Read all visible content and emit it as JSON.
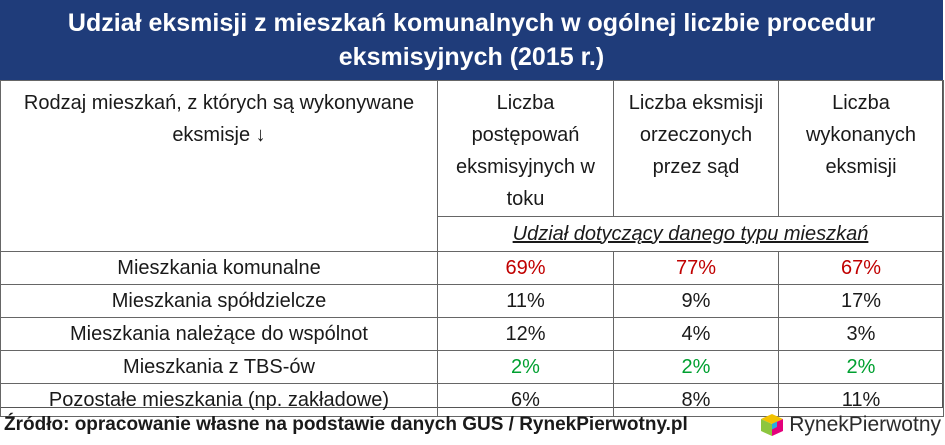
{
  "title": "Udział eksmisji z mieszkań komunalnych w ogólnej liczbie procedur eksmisyjnych (2015 r.)",
  "table": {
    "header": {
      "col0": "Rodzaj mieszkań, z których są wykonywane eksmisje ↓",
      "col1": "Liczba postępowań eksmisyjnych w toku",
      "col2": "Liczba eksmisji orzeczonych przez sąd",
      "col3": "Liczba wykonanych eksmisji"
    },
    "subheader": "Udział dotyczący danego typu mieszkań",
    "rows": [
      {
        "label": "Mieszkania komunalne",
        "v1": "69%",
        "v2": "77%",
        "v3": "67%",
        "color": "#c00000"
      },
      {
        "label": "Mieszkania spółdzielcze",
        "v1": "11%",
        "v2": "9%",
        "v3": "17%",
        "color": "#1a1a1a"
      },
      {
        "label": "Mieszkania należące do wspólnot",
        "v1": "12%",
        "v2": "4%",
        "v3": "3%",
        "color": "#1a1a1a"
      },
      {
        "label": "Mieszkania z TBS-ów",
        "v1": "2%",
        "v2": "2%",
        "v3": "2%",
        "color": "#00a030"
      },
      {
        "label": "Pozostałe mieszkania (np. zakładowe)",
        "v1": "6%",
        "v2": "8%",
        "v3": "11%",
        "color": "#1a1a1a"
      }
    ]
  },
  "footer": {
    "source": "Źródło: opracowanie własne na podstawie danych GUS / RynekPierwotny.pl",
    "logo_text": "RynekPierwotny",
    "logo_icon": "cube-logo-icon"
  },
  "colors": {
    "title_bg": "#1f3c7a",
    "highlight_red": "#c00000",
    "highlight_green": "#00a030"
  }
}
